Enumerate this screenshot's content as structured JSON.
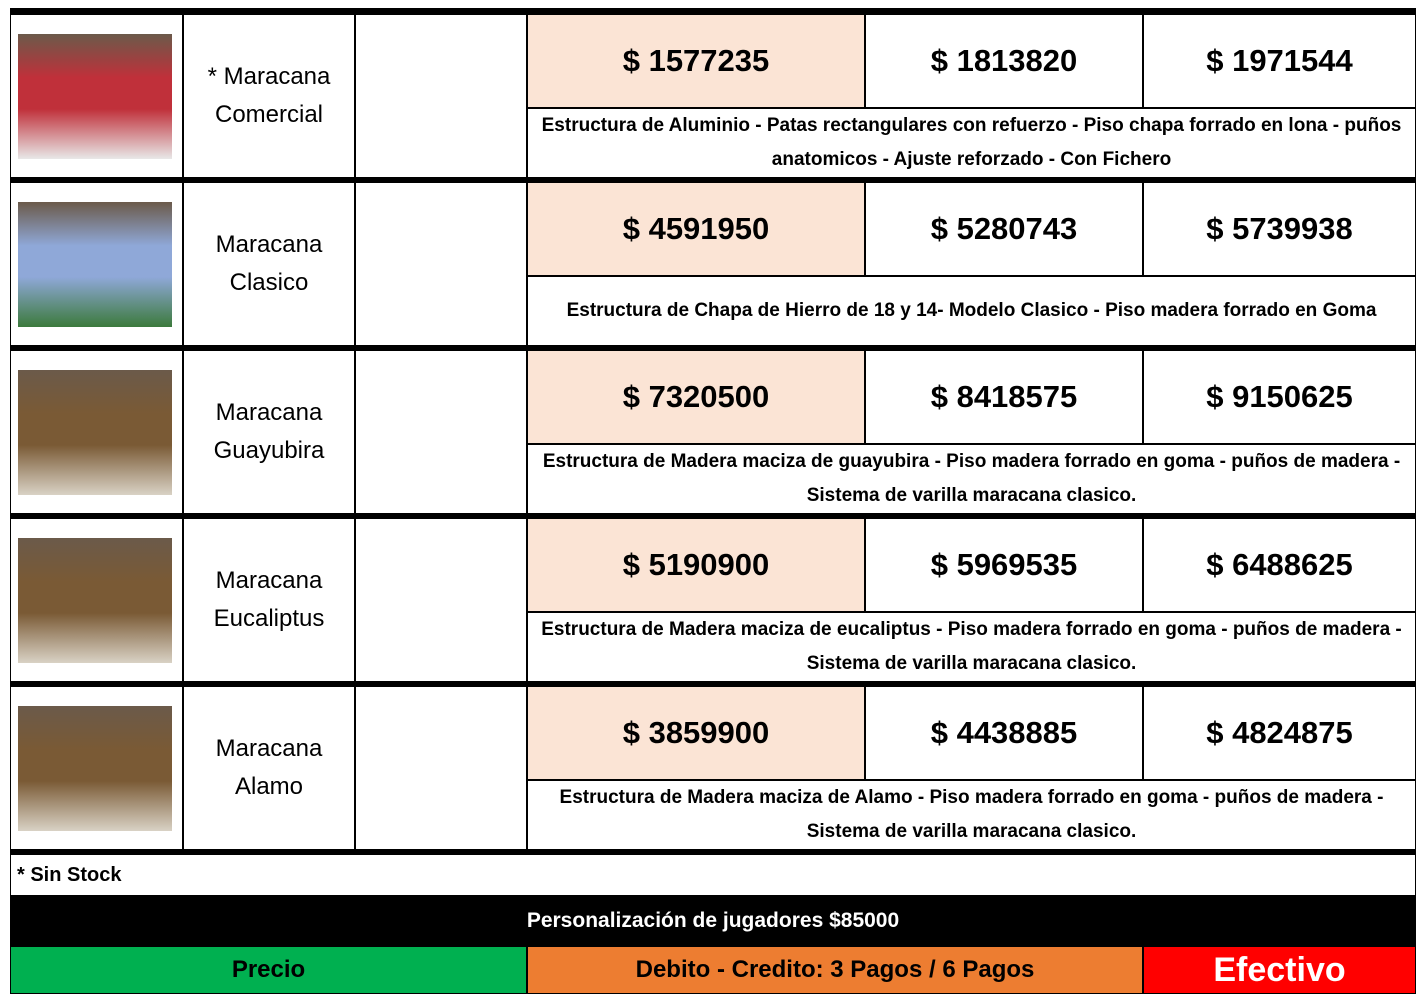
{
  "rows": [
    {
      "name": "* Maracana Comercial",
      "prices": [
        "$ 1577235",
        "$ 1813820",
        "$ 1971544"
      ],
      "description": "Estructura de Aluminio - Patas rectangulares con refuerzo - Piso chapa forrado en lona - puños anatomicos - Ajuste reforzado - Con Fichero"
    },
    {
      "name": "Maracana Clasico",
      "prices": [
        "$ 4591950",
        "$ 5280743",
        "$ 5739938"
      ],
      "description": "Estructura de Chapa de Hierro de 18 y 14- Modelo Clasico - Piso madera forrado en Goma"
    },
    {
      "name": "Maracana Guayubira",
      "prices": [
        "$ 7320500",
        "$ 8418575",
        "$ 9150625"
      ],
      "description": "Estructura de Madera maciza de guayubira - Piso madera forrado en goma - puños de madera - Sistema de varilla maracana clasico."
    },
    {
      "name": "Maracana Eucaliptus",
      "prices": [
        "$ 5190900",
        "$ 5969535",
        "$ 6488625"
      ],
      "description": "Estructura de Madera maciza de eucaliptus - Piso madera forrado en goma - puños de madera - Sistema de varilla maracana clasico."
    },
    {
      "name": "Maracana Alamo",
      "prices": [
        "$ 3859900",
        "$ 4438885",
        "$ 4824875"
      ],
      "description": "Estructura de Madera maciza de Alamo - Piso madera forrado en goma - puños de madera - Sistema de varilla maracana clasico."
    }
  ],
  "note": "* Sin Stock",
  "banner": "Personalización de jugadores $85000",
  "legend": {
    "price": "Precio",
    "card": "Debito - Credito: 3 Pagos / 6 Pagos",
    "cash": "Efectivo"
  }
}
